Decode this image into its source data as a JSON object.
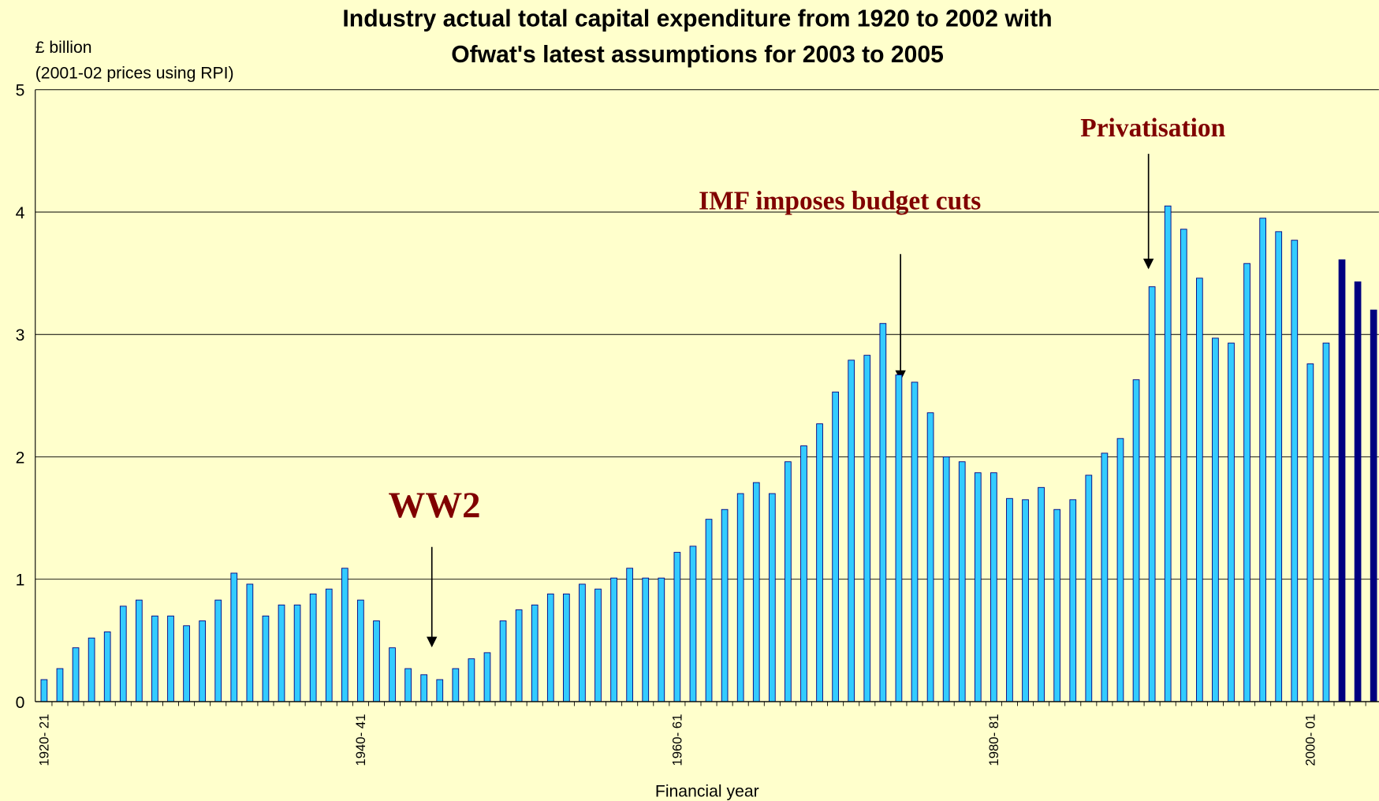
{
  "chart_data": {
    "type": "bar",
    "title": [
      "Industry actual total capital expenditure from 1920 to 2002 with",
      "Ofwat's latest assumptions for 2003 to 2005"
    ],
    "y_label": [
      "£ billion",
      "(2001-02 prices using RPI)"
    ],
    "x_label": "Financial year",
    "categories": [
      "1920- 21",
      null,
      null,
      null,
      null,
      null,
      null,
      null,
      null,
      null,
      null,
      null,
      null,
      null,
      null,
      null,
      null,
      null,
      null,
      null,
      "1940- 41",
      null,
      null,
      null,
      null,
      null,
      null,
      null,
      null,
      null,
      null,
      null,
      null,
      null,
      null,
      null,
      null,
      null,
      null,
      null,
      "1960- 61",
      null,
      null,
      null,
      null,
      null,
      null,
      null,
      null,
      null,
      null,
      null,
      null,
      null,
      null,
      null,
      null,
      null,
      null,
      null,
      "1980- 81",
      null,
      null,
      null,
      null,
      null,
      null,
      null,
      null,
      null,
      null,
      null,
      null,
      null,
      null,
      null,
      null,
      null,
      null,
      null,
      "2000- 01",
      null,
      null,
      null,
      null
    ],
    "values": [
      0.18,
      0.27,
      0.44,
      0.52,
      0.57,
      0.78,
      0.83,
      0.7,
      0.7,
      0.62,
      0.66,
      0.83,
      1.05,
      0.96,
      0.7,
      0.79,
      0.79,
      0.88,
      0.92,
      1.09,
      0.83,
      0.66,
      0.44,
      0.27,
      0.22,
      0.18,
      0.27,
      0.35,
      0.4,
      0.66,
      0.75,
      0.79,
      0.88,
      0.88,
      0.96,
      0.92,
      1.01,
      1.09,
      1.01,
      1.01,
      1.22,
      1.27,
      1.49,
      1.57,
      1.7,
      1.79,
      1.7,
      1.96,
      2.09,
      2.27,
      2.53,
      2.79,
      2.83,
      3.09,
      2.67,
      2.61,
      2.36,
      2.0,
      1.96,
      1.87,
      1.87,
      1.66,
      1.65,
      1.75,
      1.57,
      1.65,
      1.85,
      2.03,
      2.15,
      2.63,
      3.39,
      4.05,
      3.86,
      3.46,
      2.97,
      2.93,
      3.58,
      3.95,
      3.84,
      3.77,
      2.76,
      2.93,
      3.61,
      3.43,
      3.2
    ],
    "colors": [
      "#33ccff",
      "#33ccff",
      "#33ccff",
      "#33ccff",
      "#33ccff",
      "#33ccff",
      "#33ccff",
      "#33ccff",
      "#33ccff",
      "#33ccff",
      "#33ccff",
      "#33ccff",
      "#33ccff",
      "#33ccff",
      "#33ccff",
      "#33ccff",
      "#33ccff",
      "#33ccff",
      "#33ccff",
      "#33ccff",
      "#33ccff",
      "#33ccff",
      "#33ccff",
      "#33ccff",
      "#33ccff",
      "#33ccff",
      "#33ccff",
      "#33ccff",
      "#33ccff",
      "#33ccff",
      "#33ccff",
      "#33ccff",
      "#33ccff",
      "#33ccff",
      "#33ccff",
      "#33ccff",
      "#33ccff",
      "#33ccff",
      "#33ccff",
      "#33ccff",
      "#33ccff",
      "#33ccff",
      "#33ccff",
      "#33ccff",
      "#33ccff",
      "#33ccff",
      "#33ccff",
      "#33ccff",
      "#33ccff",
      "#33ccff",
      "#33ccff",
      "#33ccff",
      "#33ccff",
      "#33ccff",
      "#33ccff",
      "#33ccff",
      "#33ccff",
      "#33ccff",
      "#33ccff",
      "#33ccff",
      "#33ccff",
      "#33ccff",
      "#33ccff",
      "#33ccff",
      "#33ccff",
      "#33ccff",
      "#33ccff",
      "#33ccff",
      "#33ccff",
      "#33ccff",
      "#33ccff",
      "#33ccff",
      "#33ccff",
      "#33ccff",
      "#33ccff",
      "#33ccff",
      "#33ccff",
      "#33ccff",
      "#33ccff",
      "#33ccff",
      "#33ccff",
      "#33ccff",
      "#000080",
      "#000080",
      "#000080"
    ],
    "ylim": [
      0,
      5
    ],
    "yticks": [
      0,
      1,
      2,
      3,
      4,
      5
    ],
    "grid": true,
    "annotations": [
      "WW2",
      "IMF imposes budget cuts",
      "Privatisation"
    ]
  }
}
